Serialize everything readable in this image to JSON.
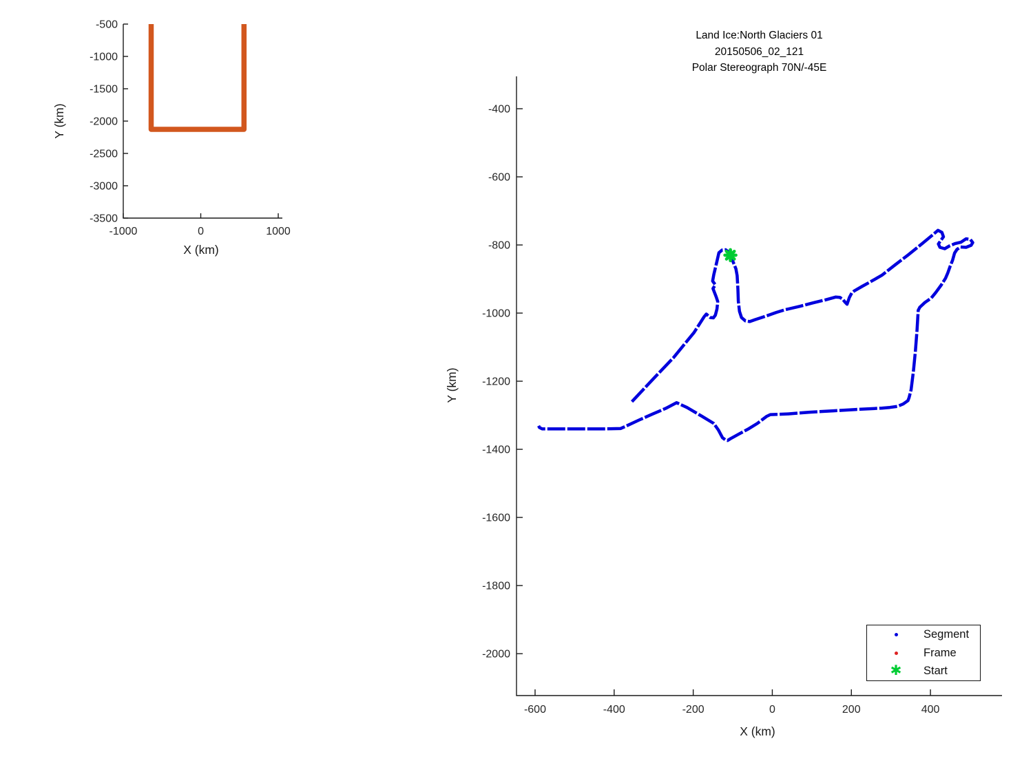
{
  "figure": {
    "background": "#ffffff"
  },
  "colors": {
    "axis": "#1a1a1a",
    "tick_label": "#262626",
    "track_orange": "#d2571e",
    "segment_blue": "#0000dd",
    "frame_red": "#dd2222",
    "start_green": "#00cc33"
  },
  "chart_data": [
    {
      "name": "overview-track-chart",
      "type": "line",
      "title": "",
      "xlabel": "X (km)",
      "ylabel": "Y (km)",
      "xlim": [
        -1000,
        1053
      ],
      "ylim": [
        -3500,
        -500
      ],
      "xticks": [
        -1000,
        0,
        1000
      ],
      "yticks": [
        -500,
        -1000,
        -1500,
        -2000,
        -2500,
        -3000,
        -3500
      ],
      "grid": false,
      "series": [
        {
          "name": "mission-overview-track",
          "color": "#d2571e",
          "width": 7.5,
          "dash": "",
          "points": [
            [
              -640,
              -500
            ],
            [
              -640,
              -2128
            ],
            [
              558,
              -2128
            ],
            [
              558,
              -500
            ]
          ]
        }
      ]
    },
    {
      "name": "flight-track-chart",
      "type": "line",
      "title_lines": [
        "Land Ice:North Glaciers 01",
        "20150506_02_121",
        "Polar Stereograph 70N/-45E"
      ],
      "xlabel": "X (km)",
      "ylabel": "Y (km)",
      "xlim": [
        -647,
        581
      ],
      "ylim": [
        -2123,
        -305
      ],
      "xticks": [
        -600,
        -400,
        -200,
        0,
        200,
        400
      ],
      "yticks": [
        -400,
        -600,
        -800,
        -1000,
        -1200,
        -1400,
        -1600,
        -1800,
        -2000
      ],
      "grid": false,
      "start_point": [
        -106,
        -830
      ],
      "legend": [
        {
          "label": "Segment",
          "marker": "dot",
          "color": "#0000dd"
        },
        {
          "label": "Frame",
          "marker": "dot",
          "color": "#dd2222"
        },
        {
          "label": "Start",
          "marker": "star",
          "color": "#00cc33"
        }
      ],
      "series": [
        {
          "name": "segment-track",
          "color": "#0000dd",
          "width": 4.5,
          "dash": "26 3",
          "points": [
            [
              -355,
              -1260
            ],
            [
              -300,
              -1192
            ],
            [
              -250,
              -1131
            ],
            [
              -198,
              -1057
            ],
            [
              -172,
              -1010
            ],
            [
              -167,
              -1003
            ],
            [
              -157,
              -1013
            ],
            [
              -149,
              -1014
            ],
            [
              -144,
              -1006
            ],
            [
              -140,
              -988
            ],
            [
              -138,
              -966
            ],
            [
              -142,
              -952
            ],
            [
              -150,
              -928
            ],
            [
              -144,
              -917
            ],
            [
              -151,
              -906
            ],
            [
              -148,
              -887
            ],
            [
              -142,
              -858
            ],
            [
              -135,
              -823
            ],
            [
              -127,
              -815
            ],
            [
              -118,
              -814
            ],
            [
              -110,
              -821
            ],
            [
              -106,
              -832
            ],
            [
              -99,
              -850
            ],
            [
              -92,
              -870
            ],
            [
              -89,
              -890
            ],
            [
              -87,
              -930
            ],
            [
              -86,
              -965
            ],
            [
              -83,
              -995
            ],
            [
              -78,
              -1013
            ],
            [
              -68,
              -1023
            ],
            [
              -57,
              -1025
            ],
            [
              -43,
              -1019
            ],
            [
              -19,
              -1010
            ],
            [
              10,
              -998
            ],
            [
              33,
              -990
            ],
            [
              70,
              -980
            ],
            [
              103,
              -970
            ],
            [
              135,
              -961
            ],
            [
              160,
              -953
            ],
            [
              171,
              -954
            ],
            [
              178,
              -959
            ],
            [
              184,
              -968
            ],
            [
              189,
              -974
            ],
            [
              195,
              -954
            ],
            [
              201,
              -941
            ],
            [
              207,
              -935
            ],
            [
              228,
              -921
            ],
            [
              247,
              -909
            ],
            [
              277,
              -889
            ],
            [
              311,
              -858
            ],
            [
              345,
              -828
            ],
            [
              380,
              -795
            ],
            [
              405,
              -771
            ],
            [
              419,
              -757
            ],
            [
              429,
              -763
            ],
            [
              433,
              -776
            ],
            [
              426,
              -787
            ],
            [
              420,
              -797
            ],
            [
              424,
              -807
            ],
            [
              436,
              -811
            ],
            [
              448,
              -803
            ],
            [
              462,
              -796
            ],
            [
              477,
              -792
            ],
            [
              490,
              -782
            ],
            [
              501,
              -784
            ],
            [
              507,
              -793
            ],
            [
              503,
              -801
            ],
            [
              490,
              -807
            ],
            [
              476,
              -806
            ],
            [
              467,
              -813
            ],
            [
              461,
              -824
            ],
            [
              456,
              -845
            ],
            [
              450,
              -862
            ],
            [
              444,
              -882
            ],
            [
              438,
              -898
            ],
            [
              427,
              -918
            ],
            [
              413,
              -940
            ],
            [
              402,
              -956
            ],
            [
              386,
              -969
            ],
            [
              373,
              -983
            ],
            [
              369,
              -992
            ],
            [
              366,
              -1050
            ],
            [
              362,
              -1110
            ],
            [
              357,
              -1170
            ],
            [
              351,
              -1225
            ],
            [
              346,
              -1248
            ],
            [
              343,
              -1257
            ],
            [
              331,
              -1267
            ],
            [
              316,
              -1274
            ],
            [
              297,
              -1277
            ],
            [
              277,
              -1279
            ],
            [
              210,
              -1283
            ],
            [
              155,
              -1287
            ],
            [
              95,
              -1291
            ],
            [
              40,
              -1296
            ],
            [
              -5,
              -1298
            ],
            [
              -14,
              -1303
            ],
            [
              -38,
              -1324
            ],
            [
              -62,
              -1341
            ],
            [
              -86,
              -1356
            ],
            [
              -106,
              -1369
            ],
            [
              -113,
              -1374
            ],
            [
              -119,
              -1372
            ],
            [
              -126,
              -1366
            ],
            [
              -136,
              -1344
            ],
            [
              -148,
              -1324
            ],
            [
              -178,
              -1303
            ],
            [
              -216,
              -1277
            ],
            [
              -242,
              -1263
            ],
            [
              -270,
              -1280
            ],
            [
              -302,
              -1296
            ],
            [
              -337,
              -1314
            ],
            [
              -370,
              -1332
            ],
            [
              -384,
              -1339
            ],
            [
              -430,
              -1340
            ],
            [
              -490,
              -1340
            ],
            [
              -545,
              -1340
            ],
            [
              -582,
              -1340
            ],
            [
              -589,
              -1336
            ],
            [
              -591,
              -1331
            ]
          ]
        }
      ]
    }
  ]
}
